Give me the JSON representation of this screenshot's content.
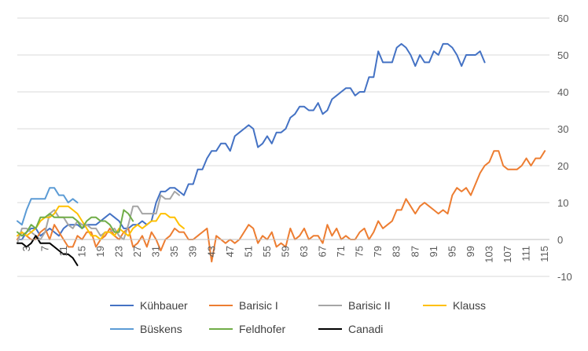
{
  "chart_data": {
    "type": "line",
    "title": "",
    "xlabel": "",
    "ylabel": "",
    "ylim": [
      -10,
      60
    ],
    "y_ticks": [
      -10,
      0,
      10,
      20,
      30,
      40,
      50,
      60
    ],
    "y_axis_side": "right",
    "x_range": [
      1,
      116
    ],
    "x_tick_labels": [
      "3",
      "7",
      "11",
      "15",
      "19",
      "23",
      "27",
      "31",
      "35",
      "39",
      "43",
      "47",
      "51",
      "55",
      "59",
      "63",
      "67",
      "71",
      "75",
      "79",
      "83",
      "87",
      "91",
      "95",
      "99",
      "103",
      "107",
      "111",
      "115"
    ],
    "grid": "horizontal",
    "legend_position": "bottom",
    "series": [
      {
        "name": "Kühbauer",
        "color": "#4472C4",
        "x_start": 1,
        "values": [
          0,
          0,
          2,
          3,
          3,
          1,
          2,
          3,
          2,
          1,
          3,
          4,
          4,
          4,
          3,
          4,
          4,
          4,
          5,
          6,
          7,
          6,
          5,
          3,
          3,
          4,
          4,
          5,
          4,
          5,
          10,
          13,
          13,
          14,
          14,
          13,
          12,
          15,
          15,
          19,
          19,
          22,
          24,
          24,
          26,
          26,
          24,
          28,
          29,
          30,
          31,
          30,
          25,
          26,
          28,
          26,
          29,
          29,
          30,
          33,
          34,
          36,
          36,
          35,
          35,
          37,
          34,
          35,
          38,
          39,
          40,
          41,
          41,
          39,
          40,
          40,
          44,
          44,
          51,
          48,
          48,
          48,
          52,
          53,
          52,
          50,
          47,
          50,
          48,
          48,
          51,
          50,
          53,
          53,
          52,
          50,
          47,
          50,
          50,
          50,
          51,
          48
        ]
      },
      {
        "name": "Barisic I",
        "color": "#ED7D31",
        "x_start": 1,
        "values": [
          0,
          2,
          1,
          0,
          0,
          2,
          3,
          0,
          4,
          2,
          0,
          -2,
          -2,
          1,
          0,
          2,
          2,
          -2,
          0,
          1,
          3,
          1,
          0,
          2,
          3,
          -2,
          -1,
          1,
          -2,
          2,
          0,
          -3,
          0,
          1,
          3,
          2,
          2,
          0,
          0,
          1,
          2,
          3,
          -6,
          1,
          0,
          -1,
          0,
          -1,
          0,
          2,
          4,
          3,
          -1,
          1,
          0,
          2,
          -2,
          -1,
          -2,
          3,
          0,
          1,
          3,
          0,
          1,
          1,
          -1,
          4,
          1,
          3,
          0,
          1,
          0,
          0,
          2,
          3,
          0,
          2,
          5,
          3,
          4,
          5,
          8,
          8,
          11,
          9,
          7,
          9,
          10,
          9,
          8,
          7,
          8,
          7,
          12,
          14,
          13,
          14,
          12,
          15,
          18,
          20,
          21,
          24,
          24,
          20,
          19,
          19,
          19,
          20,
          22,
          20,
          22,
          22,
          24
        ]
      },
      {
        "name": "Barisic II",
        "color": "#A5A5A5",
        "x_start": 1,
        "values": [
          -1,
          3,
          3,
          2,
          1,
          0,
          2,
          7,
          8,
          6,
          6,
          4,
          3,
          5,
          4,
          4,
          3,
          3,
          1,
          2,
          2,
          3,
          1,
          0,
          4,
          9,
          9,
          7,
          7,
          7,
          7,
          12,
          11,
          11,
          13,
          12
        ]
      },
      {
        "name": "Klauss",
        "color": "#FFC000",
        "x_start": 1,
        "values": [
          1,
          2,
          1,
          2,
          3,
          5,
          6,
          6,
          7,
          9,
          9,
          9,
          8,
          7,
          5,
          3,
          1,
          1,
          0,
          2,
          2,
          1,
          3,
          2,
          1,
          3,
          4,
          3,
          4,
          5,
          5,
          7,
          7,
          6,
          6,
          4,
          3
        ]
      },
      {
        "name": "Büskens",
        "color": "#5B9BD5",
        "x_start": 1,
        "values": [
          5,
          4,
          8,
          11,
          11,
          11,
          11,
          14,
          14,
          12,
          12,
          10,
          11,
          10
        ]
      },
      {
        "name": "Feldhofer",
        "color": "#70AD47",
        "x_start": 1,
        "values": [
          2,
          1,
          2,
          4,
          3,
          6,
          6,
          7,
          6,
          6,
          6,
          6,
          6,
          5,
          3,
          5,
          6,
          6,
          5,
          5,
          4,
          2,
          2,
          8,
          7,
          5
        ]
      },
      {
        "name": "Canadi",
        "color": "#000000",
        "x_start": 1,
        "values": [
          -1,
          -1,
          -2,
          -1,
          1,
          -1,
          -1,
          -1,
          -2,
          -3,
          -4,
          -4,
          -5,
          -7
        ]
      }
    ]
  }
}
